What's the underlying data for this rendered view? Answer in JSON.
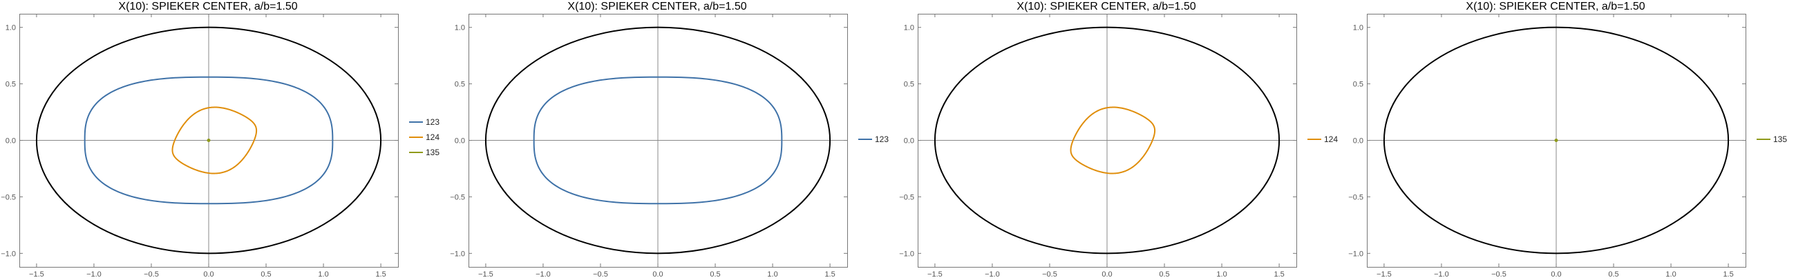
{
  "colors": {
    "ellipse": "#000000",
    "123": "#3f72a8",
    "124": "#e08e0b",
    "135": "#8f9a1a",
    "axis": "#888888",
    "frame": "#777777"
  },
  "chart_data": [
    {
      "type": "line",
      "title": "X(10): SPIEKER CENTER, a/b=1.50",
      "xlim": [
        -1.65,
        1.65
      ],
      "ylim": [
        -1.12,
        1.12
      ],
      "x_ticks": [
        "−1.5",
        "−1.0",
        "−0.5",
        "0.0",
        "0.5",
        "1.0",
        "1.5"
      ],
      "y_ticks": [
        "1.0",
        "0.5",
        "0.0",
        "−0.5",
        "−1.0"
      ],
      "legend": [
        "123",
        "124",
        "135"
      ],
      "series": [
        {
          "name": "123",
          "curve": "superellipse",
          "a": 1.08,
          "b": 0.56,
          "n": 2.7
        },
        {
          "name": "124",
          "curve": "loop",
          "center_x": 0.05,
          "center_y": 0.0,
          "rx": 0.38,
          "ry": 0.24,
          "rotation_deg": 18,
          "bulge": 0.22
        },
        {
          "name": "135",
          "curve": "point",
          "x": 0.0,
          "y": 0.0
        }
      ],
      "ellipse": {
        "a": 1.5,
        "b": 1.0
      }
    },
    {
      "type": "line",
      "title": "X(10): SPIEKER CENTER, a/b=1.50",
      "xlim": [
        -1.65,
        1.65
      ],
      "ylim": [
        -1.12,
        1.12
      ],
      "x_ticks": [
        "−1.5",
        "−1.0",
        "−0.5",
        "0.0",
        "0.5",
        "1.0",
        "1.5"
      ],
      "y_ticks": [
        "1.0",
        "0.5",
        "0.0",
        "−0.5",
        "−1.0"
      ],
      "legend": [
        "123"
      ],
      "series": [
        {
          "name": "123",
          "curve": "superellipse",
          "a": 1.08,
          "b": 0.56,
          "n": 2.7
        }
      ],
      "ellipse": {
        "a": 1.5,
        "b": 1.0
      }
    },
    {
      "type": "line",
      "title": "X(10): SPIEKER CENTER, a/b=1.50",
      "xlim": [
        -1.65,
        1.65
      ],
      "ylim": [
        -1.12,
        1.12
      ],
      "x_ticks": [
        "−1.5",
        "−1.0",
        "−0.5",
        "0.0",
        "0.5",
        "1.0",
        "1.5"
      ],
      "y_ticks": [
        "1.0",
        "0.5",
        "0.0",
        "−0.5",
        "−1.0"
      ],
      "legend": [
        "124"
      ],
      "series": [
        {
          "name": "124",
          "curve": "loop",
          "center_x": 0.05,
          "center_y": 0.0,
          "rx": 0.38,
          "ry": 0.24,
          "rotation_deg": 18,
          "bulge": 0.22
        }
      ],
      "ellipse": {
        "a": 1.5,
        "b": 1.0
      }
    },
    {
      "type": "line",
      "title": "X(10): SPIEKER CENTER, a/b=1.50",
      "xlim": [
        -1.65,
        1.65
      ],
      "ylim": [
        -1.12,
        1.12
      ],
      "x_ticks": [
        "−1.5",
        "−1.0",
        "−0.5",
        "0.0",
        "0.5",
        "1.0",
        "1.5"
      ],
      "y_ticks": [
        "1.0",
        "0.5",
        "0.0",
        "−0.5",
        "−1.0"
      ],
      "legend": [
        "135"
      ],
      "series": [
        {
          "name": "135",
          "curve": "point",
          "x": 0.0,
          "y": 0.0
        }
      ],
      "ellipse": {
        "a": 1.5,
        "b": 1.0
      }
    }
  ]
}
